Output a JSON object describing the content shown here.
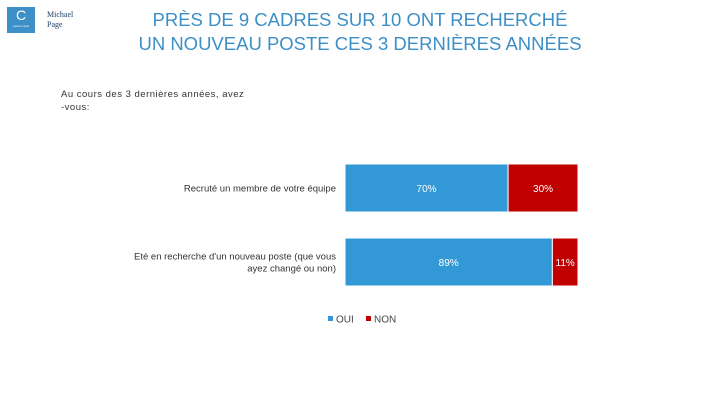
{
  "header": {
    "title_line1": "PRÈS DE 9 CADRES SUR 10 ONT RECHERCHÉ",
    "title_line2": "UN NOUVEAU POSTE CES 3 DERNIÈRES ANNÉES"
  },
  "logos": {
    "cadremploi_letter": "C",
    "cadremploi_tagline": "cadremploi",
    "michael_page_line1": "Michael",
    "michael_page_line2": "Page"
  },
  "question": "Au cours des 3 dernières années, avez -vous:",
  "colors": {
    "title": "#3d8fc7",
    "oui": "#3399d6",
    "non": "#c00000"
  },
  "chart_data": {
    "type": "bar",
    "orientation": "horizontal",
    "stacked": true,
    "categories": [
      [
        "Recruté un membre de votre équipe"
      ],
      [
        "Eté en recherche d'un nouveau poste (que vous",
        "ayez changé ou non)"
      ]
    ],
    "series": [
      {
        "name": "OUI",
        "values": [
          70,
          89
        ],
        "labels": [
          "70%",
          "89%"
        ]
      },
      {
        "name": "NON",
        "values": [
          30,
          11
        ],
        "labels": [
          "30%",
          "11%"
        ]
      }
    ],
    "xlim": [
      0,
      100
    ],
    "legend": "bottom"
  }
}
